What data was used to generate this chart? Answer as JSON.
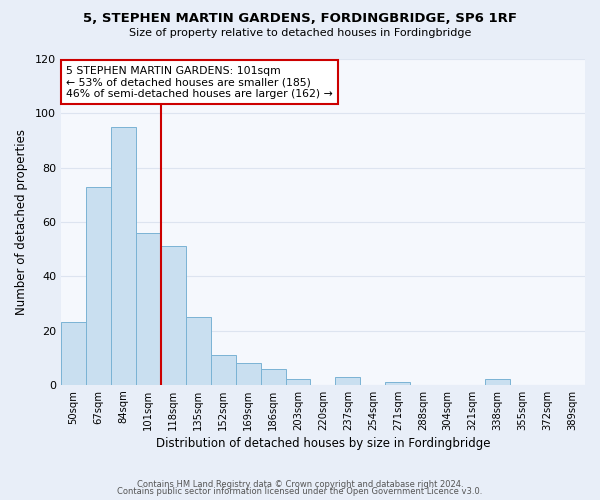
{
  "title": "5, STEPHEN MARTIN GARDENS, FORDINGBRIDGE, SP6 1RF",
  "subtitle": "Size of property relative to detached houses in Fordingbridge",
  "xlabel": "Distribution of detached houses by size in Fordingbridge",
  "ylabel": "Number of detached properties",
  "footer_lines": [
    "Contains HM Land Registry data © Crown copyright and database right 2024.",
    "Contains public sector information licensed under the Open Government Licence v3.0."
  ],
  "bins": [
    "50sqm",
    "67sqm",
    "84sqm",
    "101sqm",
    "118sqm",
    "135sqm",
    "152sqm",
    "169sqm",
    "186sqm",
    "203sqm",
    "220sqm",
    "237sqm",
    "254sqm",
    "271sqm",
    "288sqm",
    "304sqm",
    "321sqm",
    "338sqm",
    "355sqm",
    "372sqm",
    "389sqm"
  ],
  "values": [
    23,
    73,
    95,
    56,
    51,
    25,
    11,
    8,
    6,
    2,
    0,
    3,
    0,
    1,
    0,
    0,
    0,
    2,
    0,
    0,
    0
  ],
  "bar_color": "#c9dff0",
  "bar_edge_color": "#7ab3d4",
  "bar_width": 1.0,
  "vline_x_index": 3,
  "vline_color": "#cc0000",
  "annotation_text": "5 STEPHEN MARTIN GARDENS: 101sqm\n← 53% of detached houses are smaller (185)\n46% of semi-detached houses are larger (162) →",
  "annotation_box_color": "white",
  "annotation_box_edge_color": "#cc0000",
  "ylim": [
    0,
    120
  ],
  "yticks": [
    0,
    20,
    40,
    60,
    80,
    100,
    120
  ],
  "grid_color": "#dde4f0",
  "figure_background_color": "#e8eef8",
  "axes_background_color": "#f5f8fd"
}
